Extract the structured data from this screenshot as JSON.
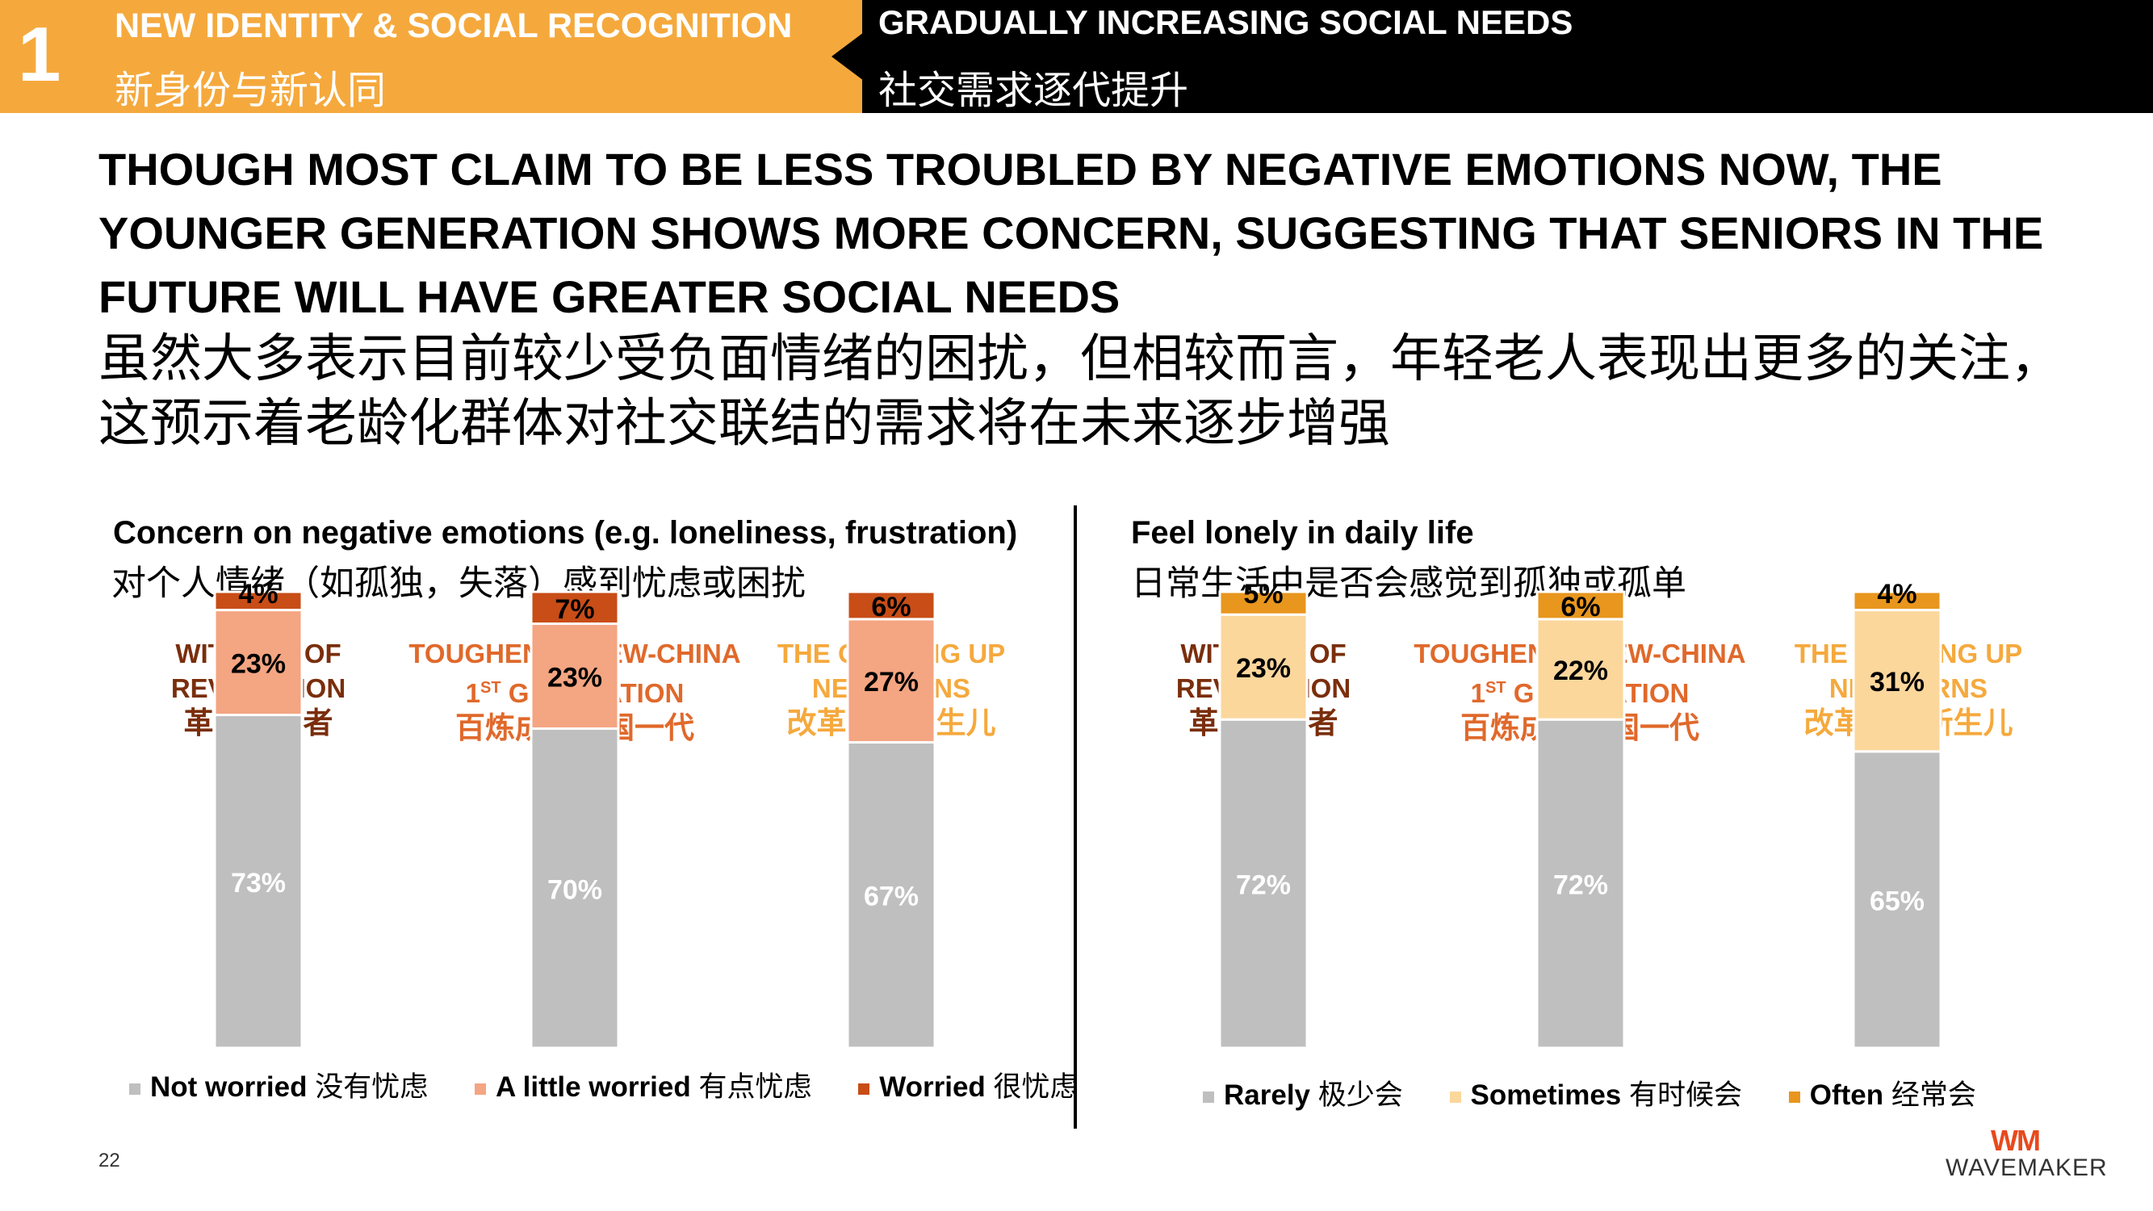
{
  "header": {
    "number": "1",
    "left_title_en": "NEW IDENTITY & SOCIAL RECOGNITION",
    "left_title_cn": "新身份与新认同",
    "right_title_en": "GRADUALLY INCREASING SOCIAL NEEDS",
    "right_title_cn": "社交需求逐代提升"
  },
  "headline": {
    "en": "THOUGH MOST CLAIM TO BE LESS TROUBLED BY NEGATIVE EMOTIONS NOW, THE YOUNGER GENERATION SHOWS MORE CONCERN, SUGGESTING THAT SENIORS IN THE FUTURE WILL HAVE GREATER SOCIAL NEEDS",
    "cn": "虽然大多表示目前较少受负面情绪的困扰，但相较而言，年轻老人表现出更多的关注，这预示着老龄化群体对社交联结的需求将在未来逐步增强"
  },
  "groups": [
    {
      "en1": "WITNESS OF",
      "en2": "REVOLUTION",
      "sup": "",
      "cn": "革命见证者"
    },
    {
      "en1": "TOUGHENED NEW-CHINA",
      "en2_pre": "1",
      "sup": "ST",
      "en2": " GENERATION",
      "cn": "百炼成金建国一代"
    },
    {
      "en1": "THE OPENING UP",
      "en2": "NEWBORNS",
      "sup": "",
      "cn": "改革开放新生儿"
    }
  ],
  "charts": {
    "left": {
      "title_en": "Concern on negative emotions (e.g. loneliness, frustration)",
      "title_cn": "对个人情绪（如孤独，失落）感到忧虑或困扰",
      "legend": [
        {
          "en": "Not worried",
          "cn": "没有忧虑"
        },
        {
          "en": "A little worried",
          "cn": "有点忧虑"
        },
        {
          "en": "Worried",
          "cn": "很忧虑"
        }
      ]
    },
    "right": {
      "title_en": "Feel lonely in daily life",
      "title_cn": "日常生活中是否会感觉到孤独或孤单",
      "legend": [
        {
          "en": "Rarely",
          "cn": "极少会"
        },
        {
          "en": "Sometimes",
          "cn": "有时候会"
        },
        {
          "en": "Often",
          "cn": "经常会"
        }
      ]
    }
  },
  "chart_data": [
    {
      "type": "bar",
      "stacked": true,
      "title": "Concern on negative emotions (e.g. loneliness, frustration)",
      "categories": [
        "WITNESS OF REVOLUTION",
        "TOUGHENED NEW-CHINA 1ST GENERATION",
        "THE OPENING UP NEWBORNS"
      ],
      "series": [
        {
          "name": "Not worried 没有忧虑",
          "values": [
            73,
            70,
            67
          ],
          "color": "#BFBFBF",
          "label_color": "#ffffff"
        },
        {
          "name": "A little worried 有点忧虑",
          "values": [
            23,
            23,
            27
          ],
          "color": "#F4A582",
          "label_color": "#000000"
        },
        {
          "name": "Worried 很忧虑",
          "values": [
            4,
            7,
            6
          ],
          "color": "#C84D17",
          "label_color": "#000000"
        }
      ],
      "unit": "%",
      "ylim": [
        0,
        100
      ]
    },
    {
      "type": "bar",
      "stacked": true,
      "title": "Feel lonely in daily life",
      "categories": [
        "WITNESS OF REVOLUTION",
        "TOUGHENED NEW-CHINA 1ST GENERATION",
        "THE OPENING UP NEWBORNS"
      ],
      "series": [
        {
          "name": "Rarely 极少会",
          "values": [
            72,
            72,
            65
          ],
          "color": "#BFBFBF",
          "label_color": "#ffffff"
        },
        {
          "name": "Sometimes 有时候会",
          "values": [
            23,
            22,
            31
          ],
          "color": "#FBD79C",
          "label_color": "#000000"
        },
        {
          "name": "Often 经常会",
          "values": [
            5,
            6,
            4
          ],
          "color": "#E8961E",
          "label_color": "#000000"
        }
      ],
      "unit": "%",
      "ylim": [
        0,
        100
      ]
    }
  ],
  "footer": {
    "page_number": "22",
    "logo_mark": "WM",
    "logo_text": "WAVEMAKER"
  }
}
